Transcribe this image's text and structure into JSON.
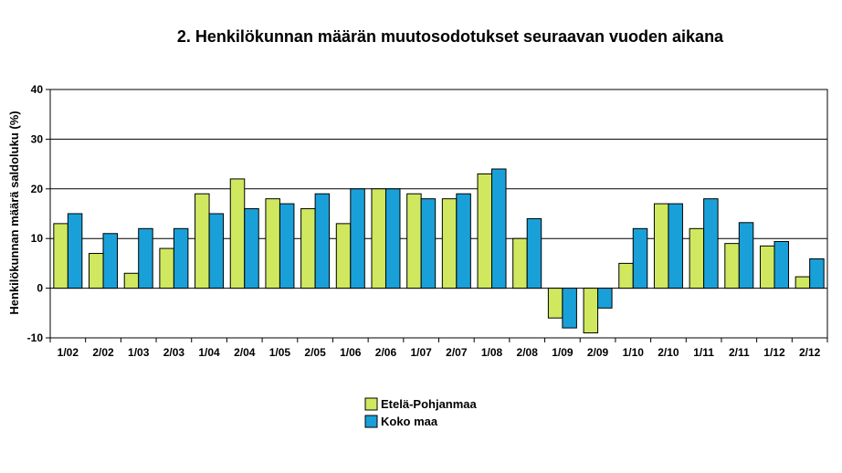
{
  "chart_data": {
    "type": "bar",
    "title": "2. Henkilökunnan määrän muutosodotukset seuraavan vuoden aikana",
    "xlabel": "",
    "ylabel": "Henkilökunnan määrä saldoluku (%)",
    "ylim": [
      -10,
      40
    ],
    "yticks": [
      -10,
      0,
      10,
      20,
      30,
      40
    ],
    "grid": true,
    "legend_position": "bottom-center",
    "categories": [
      "1/02",
      "2/02",
      "1/03",
      "2/03",
      "1/04",
      "2/04",
      "1/05",
      "2/05",
      "1/06",
      "2/06",
      "1/07",
      "2/07",
      "1/08",
      "2/08",
      "1/09",
      "2/09",
      "1/10",
      "2/10",
      "1/11",
      "2/11",
      "1/12",
      "2/12"
    ],
    "series": [
      {
        "name": "Etelä-Pohjanmaa",
        "color": "#cfe85f",
        "values": [
          13,
          7,
          3,
          8,
          19,
          22,
          18,
          16,
          13,
          20,
          19,
          18,
          23,
          10,
          -6,
          -9,
          5,
          17,
          12,
          9,
          8.5,
          2.3
        ]
      },
      {
        "name": "Koko maa",
        "color": "#1aa0d8",
        "values": [
          15,
          11,
          12,
          12,
          15,
          16,
          17,
          19,
          20,
          20,
          18,
          19,
          24,
          14,
          -8,
          -4,
          12,
          17,
          18,
          13.2,
          9.4,
          5.9
        ]
      }
    ]
  }
}
